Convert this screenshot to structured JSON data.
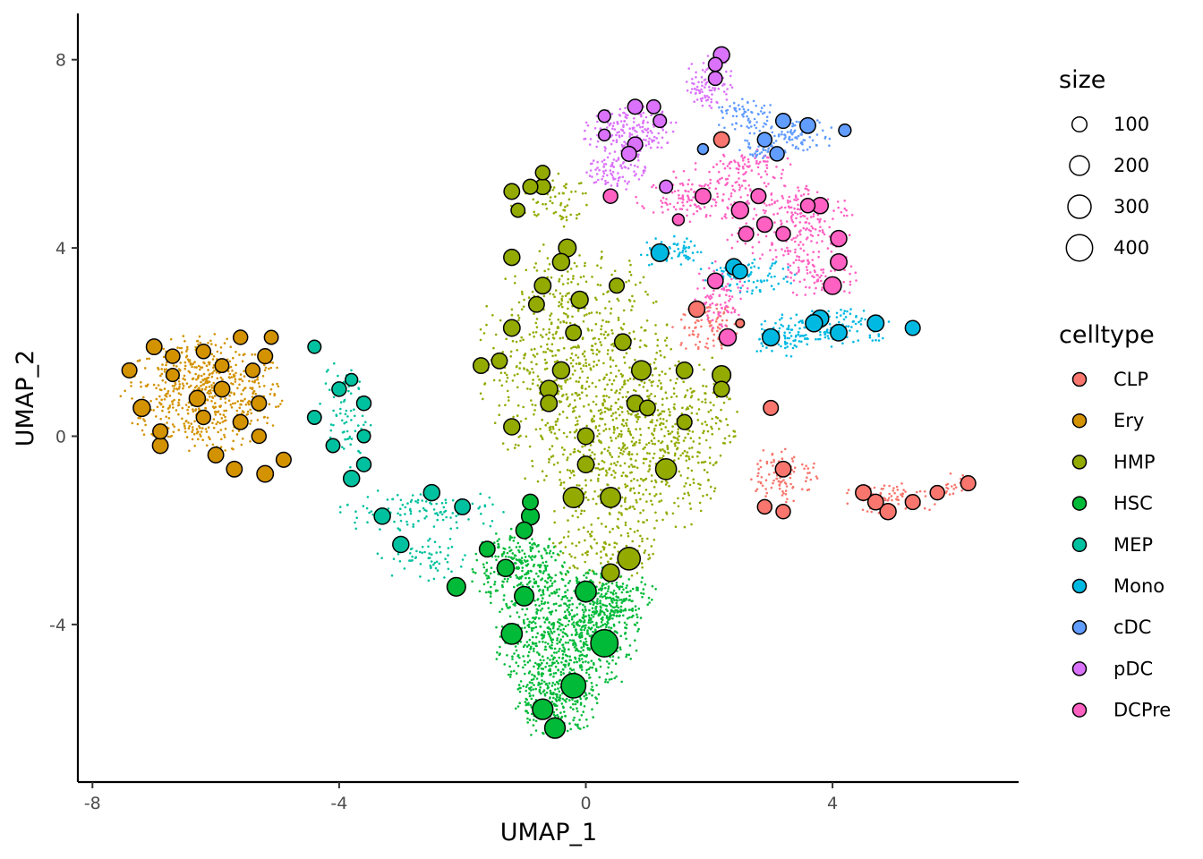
{
  "chart_data": {
    "type": "scatter",
    "title": "",
    "xlabel": "UMAP_1",
    "ylabel": "UMAP_2",
    "xlim": [
      -8.2,
      7.0
    ],
    "ylim": [
      -7.3,
      9.0
    ],
    "x_ticks": [
      -8,
      -4,
      0,
      4
    ],
    "y_ticks": [
      -4,
      0,
      4,
      8
    ],
    "x_tick_labels": [
      "-8",
      "-4",
      "0",
      "4"
    ],
    "y_tick_labels": [
      "-4",
      "0",
      "4",
      "8"
    ],
    "grid": false,
    "size_legend": {
      "title": "size",
      "entries": [
        {
          "label": "100",
          "value": 100
        },
        {
          "label": "200",
          "value": 200
        },
        {
          "label": "300",
          "value": 300
        },
        {
          "label": "400",
          "value": 400
        }
      ]
    },
    "color_legend": {
      "title": "celltype",
      "placement": "right",
      "entries": [
        {
          "label": "CLP",
          "color": "#F8766D"
        },
        {
          "label": "Ery",
          "color": "#D39200"
        },
        {
          "label": "HMP",
          "color": "#93AA00"
        },
        {
          "label": "HSC",
          "color": "#00BA38"
        },
        {
          "label": "MEP",
          "color": "#00C19F"
        },
        {
          "label": "Mono",
          "color": "#00B9E3"
        },
        {
          "label": "cDC",
          "color": "#619CFF"
        },
        {
          "label": "pDC",
          "color": "#DB72FB"
        },
        {
          "label": "DCPre",
          "color": "#FF61C3"
        }
      ]
    },
    "background_cells": [
      {
        "celltype": "Ery",
        "count": 600,
        "blobs": [
          {
            "cx": -6.2,
            "cy": 0.9,
            "rx": 1.35,
            "ry": 1.3
          }
        ]
      },
      {
        "celltype": "MEP",
        "count": 260,
        "blobs": [
          {
            "cx": -3.9,
            "cy": 0.5,
            "rx": 0.45,
            "ry": 1.2
          },
          {
            "cx": -3.3,
            "cy": -1.6,
            "rx": 0.7,
            "ry": 0.5
          },
          {
            "cx": -2.2,
            "cy": -1.6,
            "rx": 1.0,
            "ry": 0.45
          },
          {
            "cx": -2.6,
            "cy": -2.6,
            "rx": 0.8,
            "ry": 0.5
          }
        ]
      },
      {
        "celltype": "HMP",
        "count": 1500,
        "blobs": [
          {
            "cx": -0.2,
            "cy": 1.6,
            "rx": 1.6,
            "ry": 2.6
          },
          {
            "cx": 0.6,
            "cy": -0.8,
            "rx": 1.6,
            "ry": 1.5
          },
          {
            "cx": -0.6,
            "cy": 5.0,
            "rx": 0.7,
            "ry": 0.6
          },
          {
            "cx": 1.4,
            "cy": 0.5,
            "rx": 1.2,
            "ry": 1.4
          },
          {
            "cx": 0.3,
            "cy": -2.5,
            "rx": 0.9,
            "ry": 0.7
          }
        ]
      },
      {
        "celltype": "HSC",
        "count": 1500,
        "blobs": [
          {
            "cx": -0.3,
            "cy": -4.3,
            "rx": 1.2,
            "ry": 1.5
          },
          {
            "cx": -0.5,
            "cy": -5.6,
            "rx": 0.7,
            "ry": 0.9
          },
          {
            "cx": -1.1,
            "cy": -2.8,
            "rx": 0.8,
            "ry": 0.9
          },
          {
            "cx": 0.4,
            "cy": -3.5,
            "rx": 0.8,
            "ry": 0.8
          }
        ]
      },
      {
        "celltype": "Mono",
        "count": 380,
        "blobs": [
          {
            "cx": 3.9,
            "cy": 2.3,
            "rx": 1.1,
            "ry": 0.45
          },
          {
            "cx": 2.6,
            "cy": 3.4,
            "rx": 0.8,
            "ry": 0.4
          },
          {
            "cx": 1.4,
            "cy": 3.9,
            "rx": 0.6,
            "ry": 0.35
          },
          {
            "cx": 3.1,
            "cy": 2.0,
            "rx": 0.5,
            "ry": 0.35
          }
        ]
      },
      {
        "celltype": "CLP",
        "count": 300,
        "blobs": [
          {
            "cx": 5.0,
            "cy": -1.3,
            "rx": 0.9,
            "ry": 0.35
          },
          {
            "cx": 3.2,
            "cy": -0.8,
            "rx": 0.6,
            "ry": 0.6
          },
          {
            "cx": 2.0,
            "cy": 2.3,
            "rx": 0.6,
            "ry": 0.6
          },
          {
            "cx": 6.0,
            "cy": -1.0,
            "rx": 0.35,
            "ry": 0.25
          }
        ]
      },
      {
        "celltype": "DCPre",
        "count": 650,
        "blobs": [
          {
            "cx": 3.2,
            "cy": 4.6,
            "rx": 1.2,
            "ry": 0.9
          },
          {
            "cx": 3.8,
            "cy": 3.4,
            "rx": 0.6,
            "ry": 0.6
          },
          {
            "cx": 1.8,
            "cy": 5.1,
            "rx": 1.0,
            "ry": 0.6
          },
          {
            "cx": 2.2,
            "cy": 3.0,
            "rx": 0.5,
            "ry": 0.8
          },
          {
            "cx": 2.6,
            "cy": 5.7,
            "rx": 0.9,
            "ry": 0.4
          }
        ]
      },
      {
        "celltype": "pDC",
        "count": 360,
        "blobs": [
          {
            "cx": 0.7,
            "cy": 6.5,
            "rx": 0.8,
            "ry": 0.55
          },
          {
            "cx": 2.0,
            "cy": 7.5,
            "rx": 0.4,
            "ry": 0.6
          },
          {
            "cx": 0.5,
            "cy": 5.7,
            "rx": 0.5,
            "ry": 0.5
          }
        ]
      },
      {
        "celltype": "cDC",
        "count": 200,
        "blobs": [
          {
            "cx": 3.4,
            "cy": 6.4,
            "rx": 0.7,
            "ry": 0.4
          },
          {
            "cx": 2.6,
            "cy": 6.8,
            "rx": 0.5,
            "ry": 0.4
          },
          {
            "cx": 2.8,
            "cy": 6.1,
            "rx": 0.4,
            "ry": 0.3
          }
        ]
      }
    ],
    "metacells": [
      {
        "celltype": "Ery",
        "points": [
          [
            -7.0,
            1.9,
            110
          ],
          [
            -7.4,
            1.4,
            100
          ],
          [
            -6.7,
            1.7,
            90
          ],
          [
            -6.2,
            1.8,
            90
          ],
          [
            -5.6,
            2.1,
            90
          ],
          [
            -5.1,
            2.1,
            80
          ],
          [
            -6.7,
            1.3,
            70
          ],
          [
            -5.9,
            1.5,
            80
          ],
          [
            -5.4,
            1.4,
            90
          ],
          [
            -5.2,
            1.7,
            100
          ],
          [
            -7.2,
            0.6,
            140
          ],
          [
            -6.3,
            0.8,
            120
          ],
          [
            -5.9,
            1.0,
            110
          ],
          [
            -5.3,
            0.7,
            100
          ],
          [
            -6.2,
            0.4,
            90
          ],
          [
            -5.6,
            0.3,
            100
          ],
          [
            -6.9,
            0.1,
            100
          ],
          [
            -5.3,
            0.0,
            90
          ],
          [
            -6.9,
            -0.2,
            110
          ],
          [
            -6.0,
            -0.4,
            110
          ],
          [
            -5.7,
            -0.7,
            110
          ],
          [
            -5.2,
            -0.8,
            130
          ],
          [
            -4.9,
            -0.5,
            100
          ]
        ]
      },
      {
        "celltype": "MEP",
        "points": [
          [
            -4.4,
            1.9,
            70
          ],
          [
            -3.8,
            1.2,
            60
          ],
          [
            -4.0,
            1.0,
            90
          ],
          [
            -3.6,
            0.7,
            90
          ],
          [
            -4.4,
            0.4,
            80
          ],
          [
            -3.6,
            0.0,
            70
          ],
          [
            -4.1,
            -0.2,
            80
          ],
          [
            -3.6,
            -0.6,
            90
          ],
          [
            -3.8,
            -0.9,
            120
          ],
          [
            -3.3,
            -1.7,
            120
          ],
          [
            -2.5,
            -1.2,
            120
          ],
          [
            -2.0,
            -1.5,
            110
          ],
          [
            -3.0,
            -2.3,
            120
          ]
        ]
      },
      {
        "celltype": "HMP",
        "points": [
          [
            -0.7,
            5.6,
            90
          ],
          [
            -1.2,
            5.2,
            110
          ],
          [
            -0.9,
            5.3,
            100
          ],
          [
            -0.7,
            5.3,
            110
          ],
          [
            -1.1,
            4.8,
            80
          ],
          [
            -0.3,
            4.0,
            150
          ],
          [
            -0.4,
            3.7,
            140
          ],
          [
            -1.2,
            3.8,
            120
          ],
          [
            -0.7,
            3.2,
            130
          ],
          [
            -0.1,
            2.9,
            140
          ],
          [
            0.5,
            3.2,
            100
          ],
          [
            -0.8,
            2.8,
            110
          ],
          [
            -1.2,
            2.3,
            130
          ],
          [
            -0.2,
            2.2,
            110
          ],
          [
            0.6,
            2.0,
            130
          ],
          [
            -1.4,
            1.6,
            110
          ],
          [
            -1.7,
            1.5,
            110
          ],
          [
            -0.4,
            1.4,
            140
          ],
          [
            0.9,
            1.4,
            190
          ],
          [
            1.6,
            1.4,
            130
          ],
          [
            2.2,
            1.3,
            170
          ],
          [
            -0.6,
            1.0,
            150
          ],
          [
            2.2,
            1.0,
            110
          ],
          [
            -0.6,
            0.7,
            130
          ],
          [
            0.8,
            0.7,
            130
          ],
          [
            1.0,
            0.6,
            110
          ],
          [
            -1.2,
            0.2,
            120
          ],
          [
            1.6,
            0.3,
            100
          ],
          [
            0.0,
            0.0,
            130
          ],
          [
            0.0,
            -0.6,
            130
          ],
          [
            1.3,
            -0.7,
            230
          ],
          [
            -0.2,
            -1.3,
            220
          ],
          [
            0.4,
            -1.3,
            210
          ],
          [
            0.7,
            -2.6,
            280
          ],
          [
            0.4,
            -2.9,
            150
          ]
        ]
      },
      {
        "celltype": "HSC",
        "points": [
          [
            -0.9,
            -1.4,
            110
          ],
          [
            -0.9,
            -1.7,
            150
          ],
          [
            -1.0,
            -2.0,
            130
          ],
          [
            -1.6,
            -2.4,
            110
          ],
          [
            -1.3,
            -2.8,
            140
          ],
          [
            -2.1,
            -3.2,
            170
          ],
          [
            -1.0,
            -3.4,
            190
          ],
          [
            0.0,
            -3.3,
            230
          ],
          [
            -1.2,
            -4.2,
            230
          ],
          [
            0.3,
            -4.4,
            430
          ],
          [
            -0.2,
            -5.3,
            340
          ],
          [
            -0.7,
            -5.8,
            220
          ],
          [
            -0.5,
            -6.2,
            220
          ]
        ]
      },
      {
        "celltype": "Mono",
        "points": [
          [
            1.2,
            3.9,
            150
          ],
          [
            2.4,
            3.6,
            120
          ],
          [
            2.5,
            3.5,
            100
          ],
          [
            3.8,
            2.5,
            140
          ],
          [
            3.7,
            2.4,
            140
          ],
          [
            4.1,
            2.2,
            130
          ],
          [
            4.7,
            2.4,
            130
          ],
          [
            3.0,
            2.1,
            140
          ],
          [
            5.3,
            2.3,
            100
          ]
        ]
      },
      {
        "celltype": "cDC",
        "points": [
          [
            3.2,
            6.7,
            100
          ],
          [
            3.6,
            6.6,
            110
          ],
          [
            4.2,
            6.5,
            60
          ],
          [
            2.9,
            6.3,
            90
          ],
          [
            3.1,
            6.0,
            90
          ],
          [
            1.9,
            6.1,
            40
          ]
        ]
      },
      {
        "celltype": "pDC",
        "points": [
          [
            2.2,
            8.1,
            120
          ],
          [
            2.1,
            7.9,
            80
          ],
          [
            2.1,
            7.6,
            80
          ],
          [
            0.8,
            7.0,
            100
          ],
          [
            1.1,
            7.0,
            80
          ],
          [
            0.3,
            6.8,
            60
          ],
          [
            1.2,
            6.7,
            70
          ],
          [
            0.3,
            6.4,
            50
          ],
          [
            0.8,
            6.2,
            100
          ],
          [
            0.7,
            6.0,
            100
          ],
          [
            1.3,
            5.3,
            70
          ]
        ]
      },
      {
        "celltype": "DCPre",
        "points": [
          [
            0.4,
            5.1,
            90
          ],
          [
            1.9,
            5.1,
            110
          ],
          [
            2.8,
            5.1,
            100
          ],
          [
            3.6,
            4.9,
            90
          ],
          [
            3.8,
            4.9,
            120
          ],
          [
            2.5,
            4.8,
            140
          ],
          [
            1.5,
            4.6,
            50
          ],
          [
            2.9,
            4.5,
            110
          ],
          [
            2.6,
            4.3,
            100
          ],
          [
            3.2,
            4.3,
            90
          ],
          [
            4.1,
            4.2,
            120
          ],
          [
            4.1,
            3.7,
            130
          ],
          [
            2.1,
            3.3,
            110
          ],
          [
            4.0,
            3.2,
            150
          ],
          [
            2.3,
            2.1,
            140
          ]
        ]
      },
      {
        "celltype": "CLP",
        "points": [
          [
            2.2,
            6.3,
            110
          ],
          [
            1.8,
            2.7,
            120
          ],
          [
            2.5,
            2.4,
            20
          ],
          [
            3.0,
            0.6,
            100
          ],
          [
            3.2,
            -0.7,
            110
          ],
          [
            2.9,
            -1.5,
            90
          ],
          [
            3.2,
            -1.6,
            90
          ],
          [
            4.5,
            -1.2,
            110
          ],
          [
            4.7,
            -1.4,
            110
          ],
          [
            4.9,
            -1.6,
            120
          ],
          [
            5.3,
            -1.4,
            100
          ],
          [
            5.7,
            -1.2,
            90
          ],
          [
            6.2,
            -1.0,
            100
          ]
        ]
      }
    ]
  }
}
